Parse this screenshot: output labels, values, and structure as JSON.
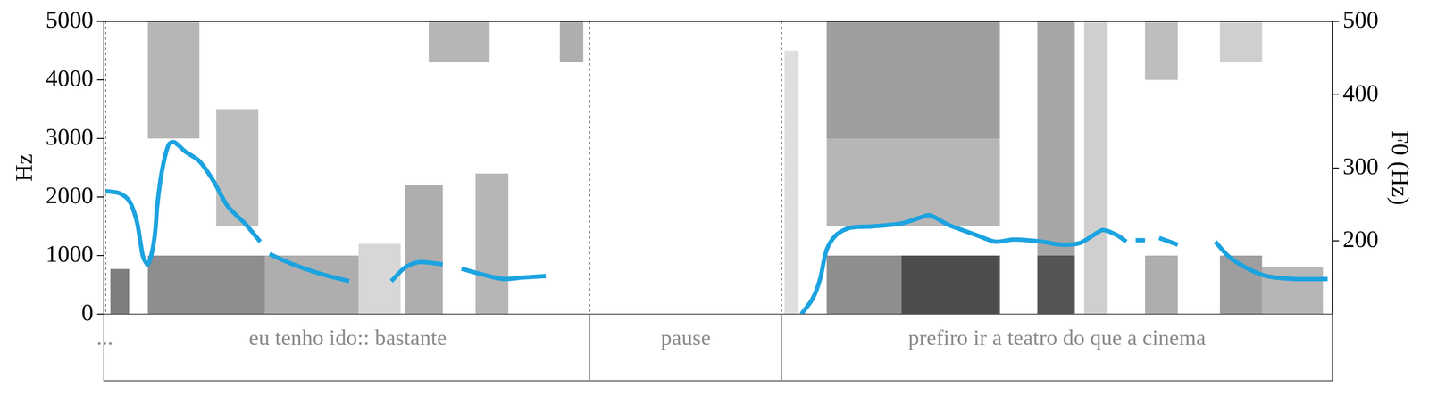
{
  "chart_data": {
    "type": "line",
    "y_label": "Hz",
    "y2_label": "F0 (Hz)",
    "xlim": [
      0,
      2.624
    ],
    "xticks": [],
    "ylim": [
      0,
      5000
    ],
    "yticks": [
      0,
      1000,
      2000,
      3000,
      4000,
      5000
    ],
    "y2lim": [
      100,
      500
    ],
    "y2ticks": [
      200,
      300,
      400,
      500
    ],
    "grid": false,
    "tick_labels": "y",
    "x": [
      0.004,
      0.034,
      0.054,
      0.07,
      0.078,
      0.084,
      0.094,
      0.104,
      0.11,
      0.114,
      0.124,
      0.138,
      0.15,
      0.174,
      0.204,
      0.234,
      0.264,
      0.304,
      0.334,
      0.34,
      0.354,
      0.404,
      0.464,
      0.524,
      0.6,
      0.614,
      0.644,
      0.674,
      0.724,
      0.73,
      0.764,
      0.804,
      0.854,
      0.894,
      0.944,
      1.2,
      1.49,
      1.514,
      1.53,
      1.544,
      1.564,
      1.594,
      1.644,
      1.704,
      1.744,
      1.764,
      1.804,
      1.864,
      1.904,
      1.944,
      2.004,
      2.044,
      2.084,
      2.114,
      2.134,
      2.164,
      2.184,
      2.19,
      2.204,
      2.224,
      2.23,
      2.254,
      2.294,
      2.3,
      2.374,
      2.404,
      2.444,
      2.484,
      2.544,
      2.614
    ],
    "series": [
      {
        "color": "#1ca3e0",
        "axis": "y2",
        "values": [
          268,
          265,
          255,
          228,
          199,
          178,
          168,
          188,
          215,
          248,
          295,
          331,
          335,
          322,
          309,
          282,
          248,
          222,
          199,
          null,
          182,
          168,
          155,
          145,
          null,
          145,
          164,
          171,
          168,
          null,
          162,
          155,
          148,
          150,
          152,
          null,
          100,
          121,
          148,
          188,
          208,
          218,
          220,
          224,
          232,
          235,
          222,
          208,
          199,
          202,
          199,
          195,
          197,
          208,
          215,
          208,
          199,
          null,
          201,
          201,
          null,
          204,
          195,
          null,
          199,
          178,
          162,
          152,
          148,
          148
        ]
      }
    ],
    "boundaries": [
      0.004,
      1.038,
      1.448
    ],
    "tier": [
      {
        "start": 0,
        "end": 0.004,
        "label": "..."
      },
      {
        "start": 0.004,
        "end": 1.038,
        "label": "eu tenho ido:: bastante"
      },
      {
        "start": 1.038,
        "end": 1.448,
        "label": "pause"
      },
      {
        "start": 1.448,
        "end": 2.624,
        "label": "prefiro ir a teatro do que a cinema"
      }
    ],
    "spectrogram": [
      {
        "t0": 0.014,
        "t1": 0.054,
        "f0": 0,
        "f1": 770,
        "level": 0.8
      },
      {
        "t0": 0.094,
        "t1": 0.344,
        "f0": 0,
        "f1": 1000,
        "level": 0.7
      },
      {
        "t0": 0.094,
        "t1": 0.204,
        "f0": 3000,
        "f1": 5000,
        "level": 0.45
      },
      {
        "t0": 0.24,
        "t1": 0.33,
        "f0": 1500,
        "f1": 3500,
        "level": 0.4
      },
      {
        "t0": 0.344,
        "t1": 0.544,
        "f0": 0,
        "f1": 1000,
        "level": 0.5
      },
      {
        "t0": 0.544,
        "t1": 0.634,
        "f0": 0,
        "f1": 1200,
        "level": 0.25
      },
      {
        "t0": 0.644,
        "t1": 0.724,
        "f0": 0,
        "f1": 2200,
        "level": 0.5
      },
      {
        "t0": 0.694,
        "t1": 0.824,
        "f0": 4300,
        "f1": 5000,
        "level": 0.45
      },
      {
        "t0": 0.794,
        "t1": 0.864,
        "f0": 0,
        "f1": 2400,
        "level": 0.45
      },
      {
        "t0": 0.974,
        "t1": 1.024,
        "f0": 4300,
        "f1": 5000,
        "level": 0.5
      },
      {
        "t0": 1.454,
        "t1": 1.484,
        "f0": 0,
        "f1": 4500,
        "level": 0.2
      },
      {
        "t0": 1.544,
        "t1": 1.914,
        "f0": 3000,
        "f1": 5000,
        "level": 0.6
      },
      {
        "t0": 1.544,
        "t1": 1.914,
        "f0": 1500,
        "f1": 3000,
        "level": 0.45
      },
      {
        "t0": 1.544,
        "t1": 1.914,
        "f0": 0,
        "f1": 1000,
        "level": 0.7
      },
      {
        "t0": 1.704,
        "t1": 1.914,
        "f0": 0,
        "f1": 1000,
        "level": 0.85
      },
      {
        "t0": 1.994,
        "t1": 2.074,
        "f0": 0,
        "f1": 5000,
        "level": 0.55
      },
      {
        "t0": 1.994,
        "t1": 2.074,
        "f0": 0,
        "f1": 1000,
        "level": 0.85
      },
      {
        "t0": 2.094,
        "t1": 2.144,
        "f0": 0,
        "f1": 5000,
        "level": 0.3
      },
      {
        "t0": 2.224,
        "t1": 2.294,
        "f0": 4000,
        "f1": 5000,
        "level": 0.4
      },
      {
        "t0": 2.224,
        "t1": 2.294,
        "f0": 0,
        "f1": 1000,
        "level": 0.5
      },
      {
        "t0": 2.384,
        "t1": 2.474,
        "f0": 4300,
        "f1": 5000,
        "level": 0.3
      },
      {
        "t0": 2.384,
        "t1": 2.474,
        "f0": 0,
        "f1": 1000,
        "level": 0.6
      },
      {
        "t0": 2.474,
        "t1": 2.604,
        "f0": 0,
        "f1": 800,
        "level": 0.45
      }
    ]
  }
}
